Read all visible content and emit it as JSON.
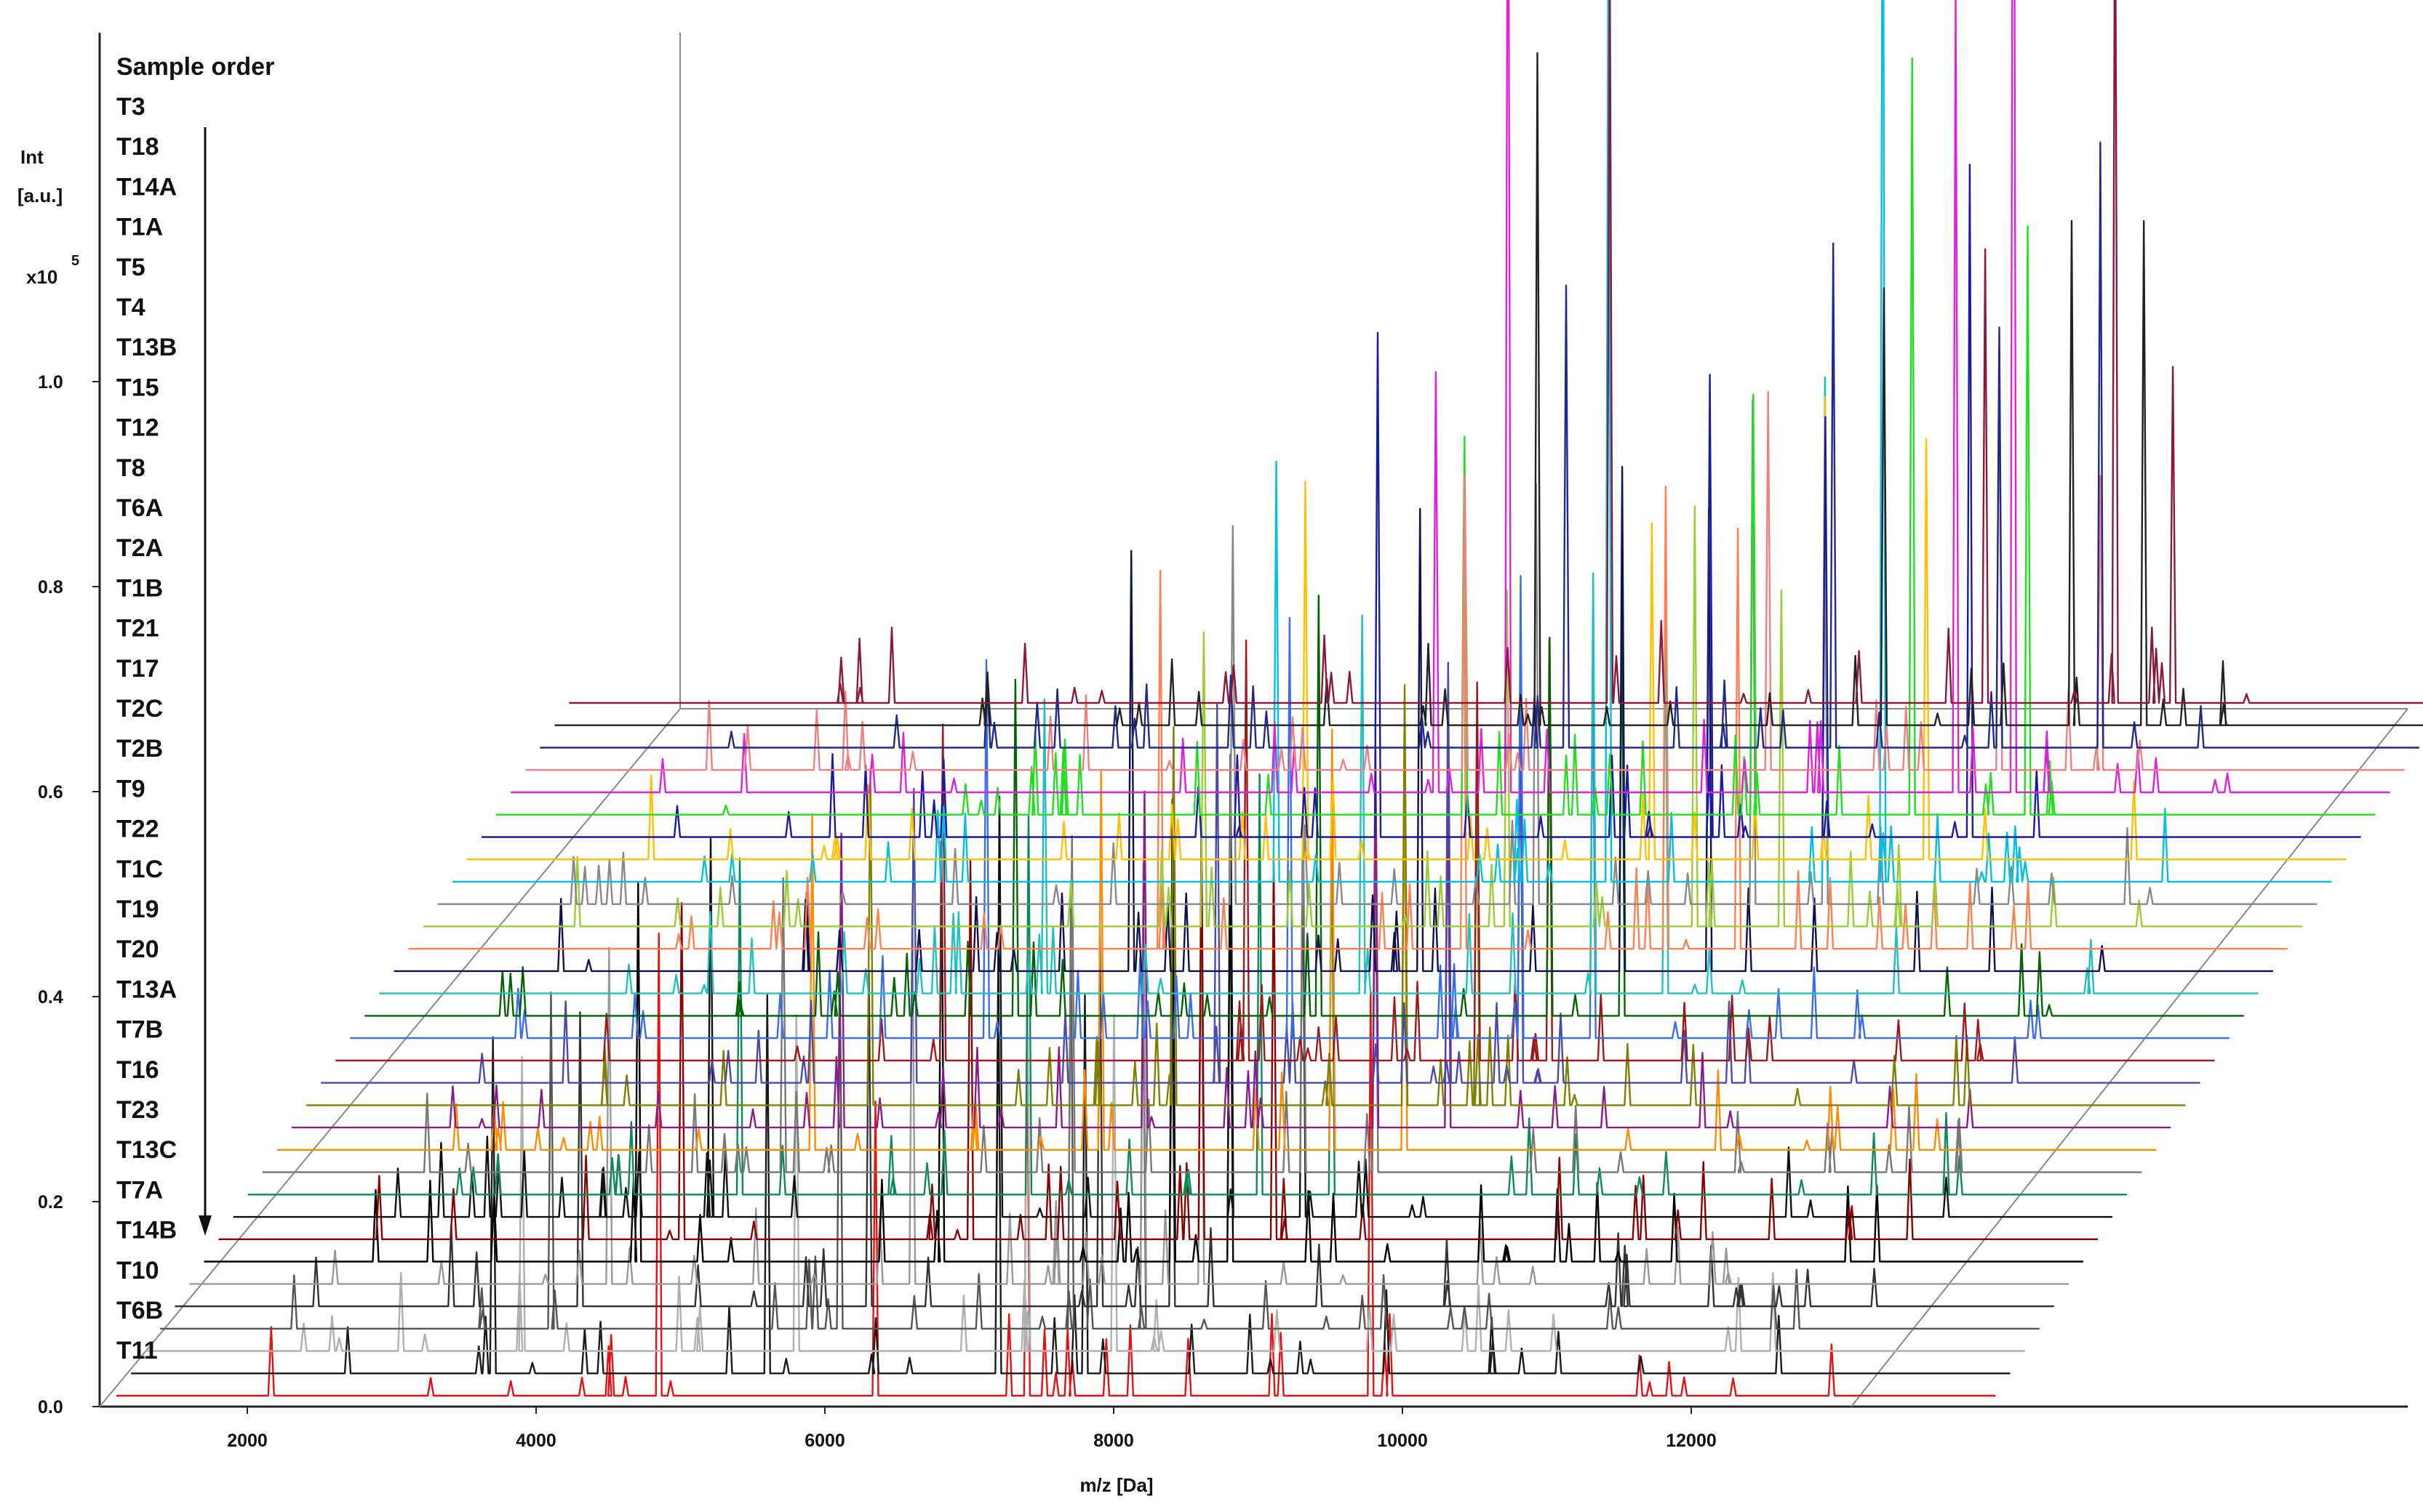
{
  "chart_data": {
    "type": "line",
    "subtype": "stacked-3d-waterfall",
    "xlabel": "m/z [Da]",
    "ylabel": "Int [a.u.]",
    "y_multiplier_label": "x10",
    "y_multiplier_exp": "5",
    "x_ticks": [
      "2000",
      "4000",
      "6000",
      "8000",
      "10000",
      "12000"
    ],
    "y_ticks": [
      "0.0",
      "0.2",
      "0.4",
      "0.6",
      "0.8",
      "1.0"
    ],
    "xlim": [
      2000,
      13000
    ],
    "ylim": [
      0,
      1.2
    ],
    "legend_title": "Sample order",
    "legend_placement": "top-left",
    "grid": false,
    "series": [
      {
        "name": "T3",
        "color": "#8b1a3a",
        "peaks": [
          [
            8300,
            0.9
          ],
          [
            10900,
            0.54
          ],
          [
            11800,
            1.05
          ],
          [
            12200,
            0.4
          ]
        ]
      },
      {
        "name": "T18",
        "color": "#222222",
        "peaks": [
          [
            7900,
            0.8
          ],
          [
            10300,
            0.52
          ],
          [
            11600,
            0.6
          ],
          [
            12100,
            0.6
          ]
        ]
      },
      {
        "name": "T14A",
        "color": "#1f2a8a",
        "peaks": [
          [
            8200,
            0.55
          ],
          [
            10050,
            0.6
          ],
          [
            11200,
            0.5
          ],
          [
            11900,
            0.72
          ]
        ]
      },
      {
        "name": "T1A",
        "color": "#f08080",
        "peaks": [
          [
            7600,
            0.35
          ],
          [
            9700,
            0.45
          ],
          [
            11300,
            0.5
          ],
          [
            12000,
            0.35
          ]
        ]
      },
      {
        "name": "T5",
        "color": "#e020e0",
        "peaks": [
          [
            7500,
            0.5
          ],
          [
            8000,
            1.3
          ],
          [
            11100,
            0.95
          ],
          [
            11500,
            1.6
          ]
        ]
      },
      {
        "name": "T4",
        "color": "#1ee01e",
        "peaks": [
          [
            7800,
            0.45
          ],
          [
            9800,
            0.5
          ],
          [
            10900,
            0.9
          ],
          [
            11700,
            0.7
          ]
        ]
      },
      {
        "name": "T13B",
        "color": "#1a1aa0",
        "peaks": [
          [
            7300,
            0.6
          ],
          [
            9600,
            0.55
          ],
          [
            10400,
            0.5
          ],
          [
            11400,
            0.8
          ]
        ]
      },
      {
        "name": "T15",
        "color": "#ffc000",
        "peaks": [
          [
            6900,
            0.45
          ],
          [
            9300,
            0.4
          ],
          [
            10500,
            0.55
          ],
          [
            11200,
            0.5
          ]
        ]
      },
      {
        "name": "T12",
        "color": "#00c0e8",
        "peaks": [
          [
            6800,
            0.5
          ],
          [
            9100,
            1.2
          ],
          [
            10600,
            0.6
          ],
          [
            11000,
            1.4
          ]
        ]
      },
      {
        "name": "T8",
        "color": "#888888",
        "peaks": [
          [
            6600,
            0.45
          ],
          [
            8700,
            0.5
          ],
          [
            10200,
            0.6
          ],
          [
            10700,
            0.45
          ]
        ]
      },
      {
        "name": "T6A",
        "color": "#9acd32",
        "peaks": [
          [
            6500,
            0.35
          ],
          [
            8600,
            0.4
          ],
          [
            9900,
            0.5
          ],
          [
            10500,
            0.4
          ]
        ]
      },
      {
        "name": "T2A",
        "color": "#ff7f50",
        "peaks": [
          [
            6300,
            0.45
          ],
          [
            8400,
            0.5
          ],
          [
            9800,
            0.55
          ],
          [
            10300,
            0.5
          ]
        ]
      },
      {
        "name": "T1B",
        "color": "#101050",
        "peaks": [
          [
            6200,
            0.5
          ],
          [
            8200,
            0.55
          ],
          [
            9600,
            0.6
          ],
          [
            10200,
            0.55
          ]
        ]
      },
      {
        "name": "T21",
        "color": "#20c0c0",
        "peaks": [
          [
            5700,
            0.35
          ],
          [
            7900,
            0.45
          ],
          [
            9500,
            0.5
          ],
          [
            10000,
            0.45
          ]
        ]
      },
      {
        "name": "T17",
        "color": "#006400",
        "peaks": [
          [
            5600,
            0.4
          ],
          [
            7700,
            0.5
          ],
          [
            9300,
            0.45
          ],
          [
            9800,
            0.5
          ]
        ]
      },
      {
        "name": "T2C",
        "color": "#3a6ee8",
        "peaks": [
          [
            5500,
            0.45
          ],
          [
            7600,
            0.5
          ],
          [
            9200,
            0.55
          ],
          [
            9700,
            0.45
          ]
        ]
      },
      {
        "name": "T2B",
        "color": "#a01818",
        "peaks": [
          [
            5300,
            0.4
          ],
          [
            7400,
            0.5
          ],
          [
            9000,
            0.45
          ],
          [
            9500,
            0.5
          ]
        ]
      },
      {
        "name": "T9",
        "color": "#4a4aa8",
        "peaks": [
          [
            5200,
            0.35
          ],
          [
            7300,
            0.45
          ],
          [
            8900,
            0.5
          ],
          [
            9400,
            0.45
          ]
        ]
      },
      {
        "name": "T22",
        "color": "#808000",
        "peaks": [
          [
            5000,
            0.4
          ],
          [
            7100,
            0.45
          ],
          [
            8700,
            0.5
          ],
          [
            9200,
            0.4
          ]
        ]
      },
      {
        "name": "T1C",
        "color": "#8b1a8b",
        "peaks": [
          [
            4900,
            0.35
          ],
          [
            7000,
            0.4
          ],
          [
            8600,
            0.45
          ],
          [
            9100,
            0.4
          ]
        ]
      },
      {
        "name": "T19",
        "color": "#ff8c00",
        "peaks": [
          [
            4800,
            0.4
          ],
          [
            6800,
            0.45
          ],
          [
            8400,
            0.5
          ],
          [
            8900,
            0.45
          ]
        ]
      },
      {
        "name": "T20",
        "color": "#777777",
        "peaks": [
          [
            4700,
            0.35
          ],
          [
            6700,
            0.4
          ],
          [
            8300,
            0.45
          ],
          [
            8800,
            0.4
          ]
        ]
      },
      {
        "name": "T13A",
        "color": "#0a8a5a",
        "peaks": [
          [
            4500,
            0.4
          ],
          [
            6500,
            0.45
          ],
          [
            8100,
            0.5
          ],
          [
            8600,
            0.45
          ]
        ]
      },
      {
        "name": "T7B",
        "color": "#111111",
        "peaks": [
          [
            4400,
            0.45
          ],
          [
            6400,
            0.5
          ],
          [
            8000,
            0.55
          ],
          [
            8500,
            0.45
          ]
        ]
      },
      {
        "name": "T16",
        "color": "#8b0000",
        "peaks": [
          [
            4300,
            0.4
          ],
          [
            6300,
            0.45
          ],
          [
            7900,
            0.5
          ],
          [
            8400,
            0.45
          ]
        ]
      },
      {
        "name": "T23",
        "color": "#000000",
        "peaks": [
          [
            4100,
            0.45
          ],
          [
            6200,
            0.5
          ],
          [
            7800,
            0.55
          ],
          [
            8200,
            0.5
          ]
        ]
      },
      {
        "name": "T13C",
        "color": "#999999",
        "peaks": [
          [
            4000,
            0.4
          ],
          [
            6100,
            0.45
          ],
          [
            7700,
            0.5
          ],
          [
            8100,
            0.45
          ]
        ]
      },
      {
        "name": "T7A",
        "color": "#333333",
        "peaks": [
          [
            3900,
            0.35
          ],
          [
            5900,
            0.4
          ],
          [
            7500,
            0.45
          ],
          [
            8000,
            0.4
          ]
        ]
      },
      {
        "name": "T14B",
        "color": "#555555",
        "peaks": [
          [
            3800,
            0.4
          ],
          [
            5800,
            0.45
          ],
          [
            7400,
            0.5
          ],
          [
            7900,
            0.45
          ]
        ]
      },
      {
        "name": "T10",
        "color": "#b0b0b0",
        "peaks": [
          [
            3700,
            0.35
          ],
          [
            5600,
            0.4
          ],
          [
            7200,
            0.45
          ],
          [
            7800,
            0.4
          ]
        ]
      },
      {
        "name": "T6B",
        "color": "#1a1a1a",
        "peaks": [
          [
            3600,
            0.4
          ],
          [
            5500,
            0.45
          ],
          [
            7100,
            0.5
          ],
          [
            7700,
            0.45
          ]
        ]
      },
      {
        "name": "T11",
        "color": "#e81010",
        "peaks": [
          [
            4850,
            0.55
          ],
          [
            6350,
            0.35
          ],
          [
            7400,
            0.45
          ],
          [
            9780,
            0.48
          ]
        ]
      }
    ]
  }
}
